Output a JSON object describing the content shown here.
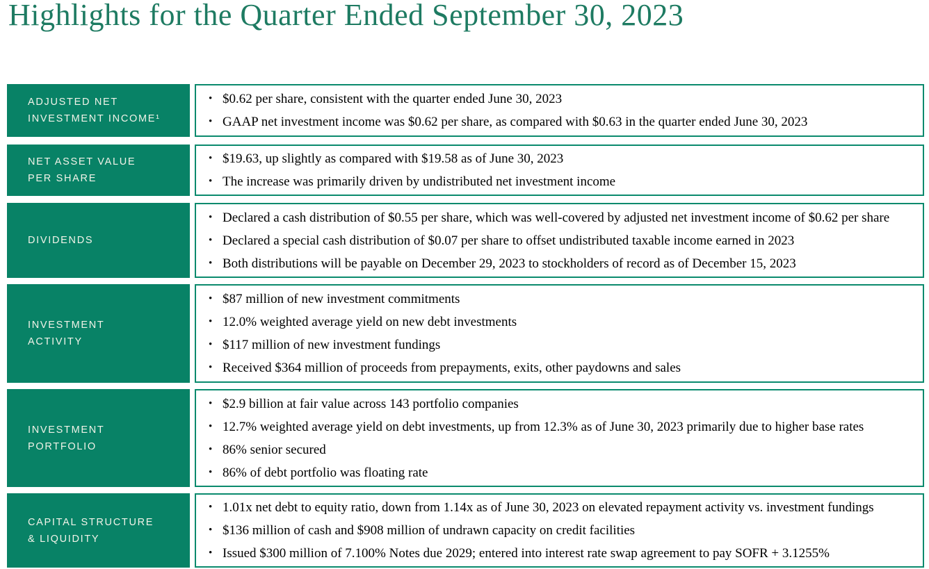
{
  "page": {
    "title": "Highlights for the Quarter Ended September 30, 2023"
  },
  "colors": {
    "brand_green": "#088266",
    "content_border_green": "#0a8a6d",
    "title_green": "#1e7b62",
    "label_text": "#f1f3e8",
    "bullet_text": "#000000"
  },
  "rows": [
    {
      "id": "adjusted-net-investment-income",
      "label_lines": [
        "ADJUSTED NET",
        "INVESTMENT INCOME¹"
      ],
      "bullets": [
        "$0.62 per share, consistent with the quarter ended June 30, 2023",
        "GAAP net investment income was $0.62 per share, as compared with $0.63 in the quarter ended June 30, 2023"
      ]
    },
    {
      "id": "net-asset-value-per-share",
      "label_lines": [
        "NET ASSET VALUE",
        "PER SHARE"
      ],
      "bullets": [
        "$19.63, up slightly as compared with $19.58 as of June 30, 2023",
        "The increase was primarily driven by undistributed net investment income"
      ]
    },
    {
      "id": "dividends",
      "label_lines": [
        "DIVIDENDS"
      ],
      "bullets": [
        "Declared a cash distribution of $0.55 per share, which was well-covered by adjusted net investment income of $0.62 per share",
        "Declared a special cash distribution of $0.07 per share to offset undistributed taxable income earned in 2023",
        "Both distributions will be payable on December 29, 2023 to stockholders of record as of December 15, 2023"
      ]
    },
    {
      "id": "investment-activity",
      "label_lines": [
        "INVESTMENT",
        "ACTIVITY"
      ],
      "bullets": [
        "$87 million of new investment commitments",
        "12.0% weighted average yield on new debt investments",
        "$117 million of new investment fundings",
        "Received $364 million of proceeds from prepayments, exits, other paydowns and sales"
      ]
    },
    {
      "id": "investment-portfolio",
      "label_lines": [
        "INVESTMENT",
        "PORTFOLIO"
      ],
      "bullets": [
        "$2.9 billion at fair value across 143 portfolio companies",
        "12.7% weighted average yield on debt investments, up from 12.3% as of June 30, 2023 primarily due to higher base rates",
        "86% senior secured",
        "86% of debt portfolio was floating rate"
      ]
    },
    {
      "id": "capital-structure-liquidity",
      "label_lines": [
        "CAPITAL STRUCTURE",
        "& LIQUIDITY"
      ],
      "bullets": [
        "1.01x net debt to equity ratio, down from 1.14x as of June 30, 2023 on elevated repayment activity vs. investment fundings",
        "$136 million of cash and $908 million of undrawn capacity on credit facilities",
        "Issued $300 million of 7.100% Notes due 2029; entered into interest rate swap agreement to pay SOFR + 3.1255%"
      ]
    }
  ]
}
